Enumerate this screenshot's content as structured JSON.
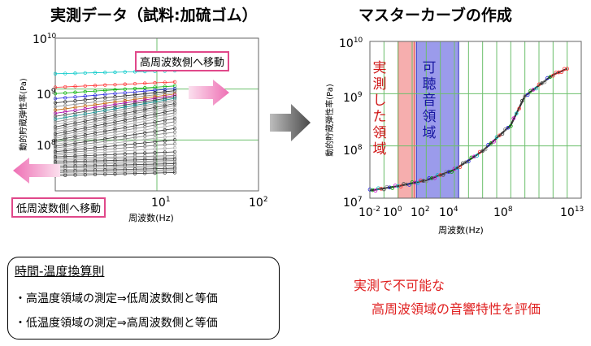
{
  "left_title": "実測データ（試料:加硫ゴム）",
  "right_title": "マスターカーブの作成",
  "left_labels": {
    "shift_high": "高周波数側へ移動",
    "shift_low": "低周波数側へ移動"
  },
  "regions": {
    "measured": "実測した領域",
    "audible": "可聴音領域"
  },
  "rule_box": {
    "title": "時間-温度換算則",
    "line1": "・高温度領域の測定⇒低周波数側と等価",
    "line2": "・低温度領域の測定⇒高周波数側と等価"
  },
  "conclusion": {
    "line1": "実測で不可能な",
    "line2": "高周波領域の音響特性を評価"
  },
  "chart_data": [
    {
      "type": "scatter",
      "xlabel": "周波数(Hz)",
      "ylabel": "動的貯蔵弾性率(Pa)",
      "x_ticks": [
        "10^1",
        "10^2"
      ],
      "y_ticks": [
        "10^8",
        "10^9",
        "10^10"
      ],
      "x_scale": "log",
      "y_scale": "log",
      "xlim": [
        1,
        100
      ],
      "ylim": [
        10000000,
        10000000000
      ],
      "grid": true,
      "series_count": 40,
      "x_range_measured": [
        1,
        15
      ],
      "y_top_series_start": 2000000000,
      "y_bottom_series_start": 20000000
    },
    {
      "type": "scatter",
      "xlabel": "周波数(Hz)",
      "ylabel": "動的貯蔵弾性率(Pa)",
      "x_ticks": [
        "10^-2",
        "10^0",
        "10^2",
        "10^4",
        "10^8",
        "10^13"
      ],
      "y_ticks": [
        "10^7",
        "10^8",
        "10^9",
        "10^10"
      ],
      "x_scale": "log",
      "y_scale": "log",
      "xlim": [
        0.01,
        10000000000000
      ],
      "ylim": [
        10000000,
        10000000000
      ],
      "grid": true,
      "regions": [
        {
          "name": "実測した領域",
          "x_range": [
            1,
            15
          ],
          "color": "#f4a0a0"
        },
        {
          "name": "可聴音領域",
          "x_range": [
            20,
            20000
          ],
          "color": "#8a8ae8"
        }
      ],
      "master_curve": [
        {
          "x": 0.01,
          "y": 14000000
        },
        {
          "x": 1,
          "y": 17000000
        },
        {
          "x": 100,
          "y": 22000000
        },
        {
          "x": 10000,
          "y": 35000000
        },
        {
          "x": 1000000,
          "y": 80000000
        },
        {
          "x": 100000000,
          "y": 250000000
        },
        {
          "x": 1000000000,
          "y": 900000000
        },
        {
          "x": 100000000000,
          "y": 2300000000
        },
        {
          "x": 1000000000000,
          "y": 3000000000
        }
      ]
    }
  ]
}
